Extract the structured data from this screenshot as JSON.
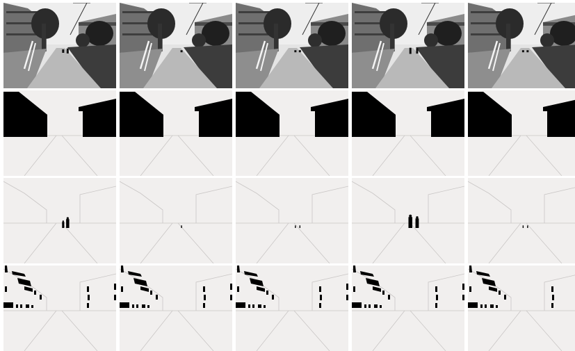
{
  "figure": {
    "row_kinds": [
      "photo",
      "building-mask",
      "pedestrian-mask",
      "window-mask"
    ],
    "frames": [
      {
        "pedestrians": [
          {
            "x": 0.57,
            "h": 0.13
          },
          {
            "x": 0.53,
            "h": 0.09
          }
        ]
      },
      {
        "pedestrians": [
          {
            "x": 0.55,
            "h": 0.03
          }
        ]
      },
      {
        "pedestrians": [
          {
            "x": 0.53,
            "h": 0.03
          },
          {
            "x": 0.57,
            "h": 0.03
          }
        ]
      },
      {
        "pedestrians": [
          {
            "x": 0.52,
            "h": 0.16
          },
          {
            "x": 0.58,
            "h": 0.14
          }
        ]
      },
      {
        "pedestrians": [
          {
            "x": 0.49,
            "h": 0.03
          },
          {
            "x": 0.53,
            "h": 0.03
          }
        ]
      }
    ],
    "colors": {
      "mask_bg": "#f1efee",
      "mask_fg": "#000000",
      "lines": "#c9c6c5"
    }
  }
}
